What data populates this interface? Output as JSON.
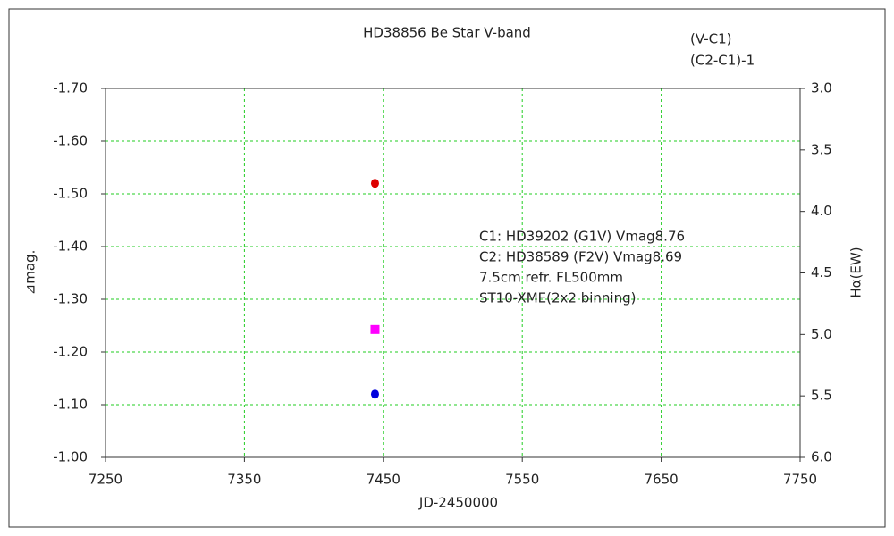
{
  "chart_data": {
    "type": "scatter",
    "title": "HD38856   Be Star   V-band",
    "x_label": "JD-2450000",
    "y_label": "⊿mag.",
    "y2_label": "Hα(EW)",
    "xlim": [
      7250,
      7750
    ],
    "xticks": [
      7250,
      7350,
      7450,
      7550,
      7650,
      7750
    ],
    "ylim": [
      -1.0,
      -1.7
    ],
    "yticks": [
      {
        "value": -1.7,
        "label": "-1.70"
      },
      {
        "value": -1.6,
        "label": "-1.60"
      },
      {
        "value": -1.5,
        "label": "-1.50"
      },
      {
        "value": -1.4,
        "label": "-1.40"
      },
      {
        "value": -1.3,
        "label": "-1.30"
      },
      {
        "value": -1.2,
        "label": "-1.20"
      },
      {
        "value": -1.1,
        "label": "-1.10"
      },
      {
        "value": -1.0,
        "label": "-1.00"
      }
    ],
    "y2lim": [
      6.0,
      3.0
    ],
    "y2ticks": [
      {
        "value": 3,
        "label": "3.0"
      },
      {
        "value": 3.5,
        "label": "3.5"
      },
      {
        "value": 4,
        "label": "4.0"
      },
      {
        "value": 4.5,
        "label": "4.5"
      },
      {
        "value": 5,
        "label": "5.0"
      },
      {
        "value": 5.5,
        "label": "5.5"
      },
      {
        "value": 6,
        "label": "6.0"
      }
    ],
    "y2_color": "#ee00ee",
    "grid": true,
    "series": [
      {
        "name": "(V-C1)",
        "color": "#dd0000",
        "marker": "circle",
        "x": [
          7444
        ],
        "values": [
          -1.52
        ]
      },
      {
        "name": "(C2-C1)-1",
        "color": "#0000dd",
        "marker": "circle",
        "x": [
          7444
        ],
        "values": [
          -1.12
        ]
      },
      {
        "color": "#ff00ff",
        "marker": "square",
        "axis": "y2",
        "x": [
          7444
        ],
        "values": [
          4.96
        ]
      }
    ],
    "annotations": [
      "C1: HD39202 (G1V) Vmag8.76",
      "C2: HD38589 (F2V) Vmag8.69",
      "7.5cm refr. FL500mm",
      "ST10-XME(2x2 binning)"
    ]
  }
}
